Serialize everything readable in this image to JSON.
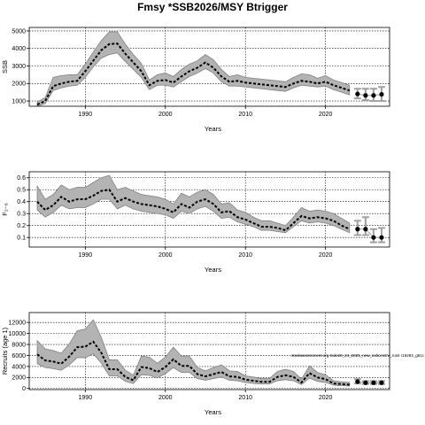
{
  "page": {
    "title": "Fmsy *SSB2026/MSY Btrigger"
  },
  "chart_data": [
    {
      "type": "line",
      "id": "ssb",
      "xlabel": "Years",
      "ylabel": "SSB",
      "xlim": [
        1983,
        2028
      ],
      "ylim": [
        700,
        5200
      ],
      "xticks": [
        1990,
        2000,
        2010,
        2020
      ],
      "yticks": [
        1000,
        2000,
        3000,
        4000,
        5000
      ],
      "grid": true,
      "years": [
        1984,
        1985,
        1986,
        1987,
        1988,
        1989,
        1990,
        1991,
        1992,
        1993,
        1994,
        1995,
        1996,
        1997,
        1998,
        1999,
        2000,
        2001,
        2002,
        2003,
        2004,
        2005,
        2006,
        2007,
        2008,
        2009,
        2010,
        2011,
        2012,
        2013,
        2014,
        2015,
        2016,
        2017,
        2018,
        2019,
        2020,
        2021,
        2022,
        2023
      ],
      "median": [
        800,
        1000,
        1850,
        2000,
        2100,
        2150,
        2700,
        3300,
        3900,
        4250,
        4280,
        3700,
        3200,
        2700,
        1900,
        2150,
        2200,
        2050,
        2400,
        2700,
        2900,
        3200,
        2900,
        2400,
        2100,
        2150,
        2050,
        2000,
        1950,
        1900,
        1850,
        1800,
        2000,
        2150,
        2100,
        2000,
        2100,
        1900,
        1750,
        1600
      ],
      "lower": [
        700,
        850,
        1600,
        1750,
        1850,
        1900,
        2350,
        2950,
        3450,
        3650,
        3750,
        3250,
        2800,
        2350,
        1650,
        1900,
        1900,
        1800,
        2100,
        2400,
        2600,
        2850,
        2600,
        2100,
        1850,
        1850,
        1800,
        1750,
        1700,
        1650,
        1600,
        1550,
        1750,
        1900,
        1850,
        1800,
        1850,
        1650,
        1500,
        1350
      ],
      "upper": [
        950,
        1200,
        2350,
        2450,
        2500,
        2500,
        3100,
        3800,
        4450,
        4950,
        4950,
        4250,
        3650,
        3150,
        2200,
        2500,
        2600,
        2400,
        2800,
        3100,
        3300,
        3650,
        3350,
        2800,
        2400,
        2500,
        2350,
        2300,
        2250,
        2200,
        2150,
        2100,
        2350,
        2550,
        2500,
        2300,
        2450,
        2200,
        2050,
        1900
      ],
      "forecast": {
        "years": [
          2024,
          2025,
          2026,
          2027
        ],
        "median": [
          1400,
          1320,
          1320,
          1380
        ],
        "lower": [
          1150,
          1050,
          1000,
          1000
        ],
        "upper": [
          1700,
          1700,
          1700,
          1800
        ]
      }
    },
    {
      "type": "line",
      "id": "f",
      "xlabel": "Years",
      "ylabel": "F₂₋₆",
      "xlim": [
        1983,
        2028
      ],
      "ylim": [
        0.02,
        0.65
      ],
      "xticks": [
        1990,
        2000,
        2010,
        2020
      ],
      "yticks": [
        0.1,
        0.2,
        0.3,
        0.4,
        0.5,
        0.6
      ],
      "grid": true,
      "years": [
        1984,
        1985,
        1986,
        1987,
        1988,
        1989,
        1990,
        1991,
        1992,
        1993,
        1994,
        1995,
        1996,
        1997,
        1998,
        1999,
        2000,
        2001,
        2002,
        2003,
        2004,
        2005,
        2006,
        2007,
        2008,
        2009,
        2010,
        2011,
        2012,
        2013,
        2014,
        2015,
        2016,
        2017,
        2018,
        2019,
        2020,
        2021,
        2022,
        2023
      ],
      "median": [
        0.4,
        0.33,
        0.37,
        0.44,
        0.4,
        0.42,
        0.42,
        0.45,
        0.49,
        0.5,
        0.4,
        0.43,
        0.4,
        0.38,
        0.37,
        0.36,
        0.34,
        0.31,
        0.38,
        0.35,
        0.4,
        0.42,
        0.38,
        0.31,
        0.32,
        0.27,
        0.25,
        0.22,
        0.19,
        0.19,
        0.18,
        0.16,
        0.22,
        0.28,
        0.26,
        0.27,
        0.26,
        0.24,
        0.2,
        0.17
      ],
      "lower": [
        0.33,
        0.27,
        0.31,
        0.37,
        0.34,
        0.35,
        0.35,
        0.38,
        0.42,
        0.42,
        0.34,
        0.37,
        0.34,
        0.32,
        0.31,
        0.3,
        0.29,
        0.26,
        0.32,
        0.3,
        0.34,
        0.36,
        0.32,
        0.26,
        0.27,
        0.23,
        0.21,
        0.19,
        0.16,
        0.16,
        0.15,
        0.14,
        0.19,
        0.24,
        0.22,
        0.23,
        0.22,
        0.2,
        0.17,
        0.14
      ],
      "upper": [
        0.53,
        0.42,
        0.46,
        0.54,
        0.5,
        0.52,
        0.52,
        0.56,
        0.6,
        0.62,
        0.5,
        0.52,
        0.49,
        0.46,
        0.45,
        0.44,
        0.42,
        0.38,
        0.47,
        0.44,
        0.48,
        0.5,
        0.46,
        0.38,
        0.39,
        0.33,
        0.31,
        0.27,
        0.24,
        0.24,
        0.22,
        0.2,
        0.27,
        0.35,
        0.32,
        0.33,
        0.32,
        0.3,
        0.26,
        0.22
      ],
      "forecast": {
        "years": [
          2024,
          2025,
          2026,
          2027
        ],
        "median": [
          0.17,
          0.17,
          0.1,
          0.1
        ],
        "lower": [
          0.12,
          0.12,
          0.06,
          0.06
        ],
        "upper": [
          0.24,
          0.27,
          0.17,
          0.18
        ]
      }
    },
    {
      "type": "line",
      "id": "rec",
      "xlabel": "Years",
      "ylabel": "Recruits (age 1)",
      "xlim": [
        1983,
        2028
      ],
      "ylim": [
        -200,
        13800
      ],
      "xticks": [
        1990,
        2000,
        2010,
        2020
      ],
      "yticks": [
        0,
        2000,
        4000,
        6000,
        8000,
        10000,
        12000
      ],
      "grid": true,
      "annotation": "stockassessment.org Sole20_24_2025_new_indicesCV_runit r19283_g61c",
      "years": [
        1984,
        1985,
        1986,
        1987,
        1988,
        1989,
        1990,
        1991,
        1992,
        1993,
        1994,
        1995,
        1996,
        1997,
        1998,
        1999,
        2000,
        2001,
        2002,
        2003,
        2004,
        2005,
        2006,
        2007,
        2008,
        2009,
        2010,
        2011,
        2012,
        2013,
        2014,
        2015,
        2016,
        2017,
        2018,
        2019,
        2020,
        2021,
        2022,
        2023
      ],
      "median": [
        6200,
        5100,
        4900,
        4500,
        5800,
        7500,
        7600,
        8500,
        6500,
        3500,
        3500,
        2100,
        1500,
        3900,
        3700,
        3000,
        3900,
        5300,
        4100,
        4100,
        2600,
        2200,
        2600,
        3000,
        2200,
        2100,
        1600,
        1400,
        1200,
        1200,
        2100,
        2400,
        2100,
        1100,
        2800,
        2000,
        1700,
        900,
        800,
        700
      ],
      "lower": [
        4500,
        3800,
        3600,
        3300,
        4300,
        5600,
        5600,
        6300,
        4600,
        2300,
        2300,
        1300,
        900,
        2500,
        2400,
        1900,
        2700,
        3800,
        2900,
        2900,
        1800,
        1500,
        1800,
        2100,
        1500,
        1400,
        1100,
        900,
        800,
        800,
        1400,
        1600,
        1400,
        700,
        1900,
        1300,
        1100,
        600,
        500,
        450
      ],
      "upper": [
        8700,
        7200,
        6900,
        6400,
        8100,
        10500,
        10800,
        12500,
        9300,
        5200,
        5200,
        3300,
        2400,
        5900,
        5700,
        4600,
        5700,
        7500,
        5900,
        5900,
        3800,
        3200,
        3800,
        4300,
        3200,
        3100,
        2300,
        2100,
        1800,
        1800,
        3100,
        3500,
        3100,
        1700,
        4100,
        2900,
        2500,
        1400,
        1200,
        1100
      ],
      "forecast": {
        "years": [
          2024,
          2025,
          2026,
          2027
        ],
        "median": [
          1250,
          1050,
          1050,
          1050
        ],
        "lower": [
          900,
          800,
          800,
          800
        ],
        "upper": [
          1700,
          1350,
          1350,
          1350
        ]
      }
    }
  ]
}
